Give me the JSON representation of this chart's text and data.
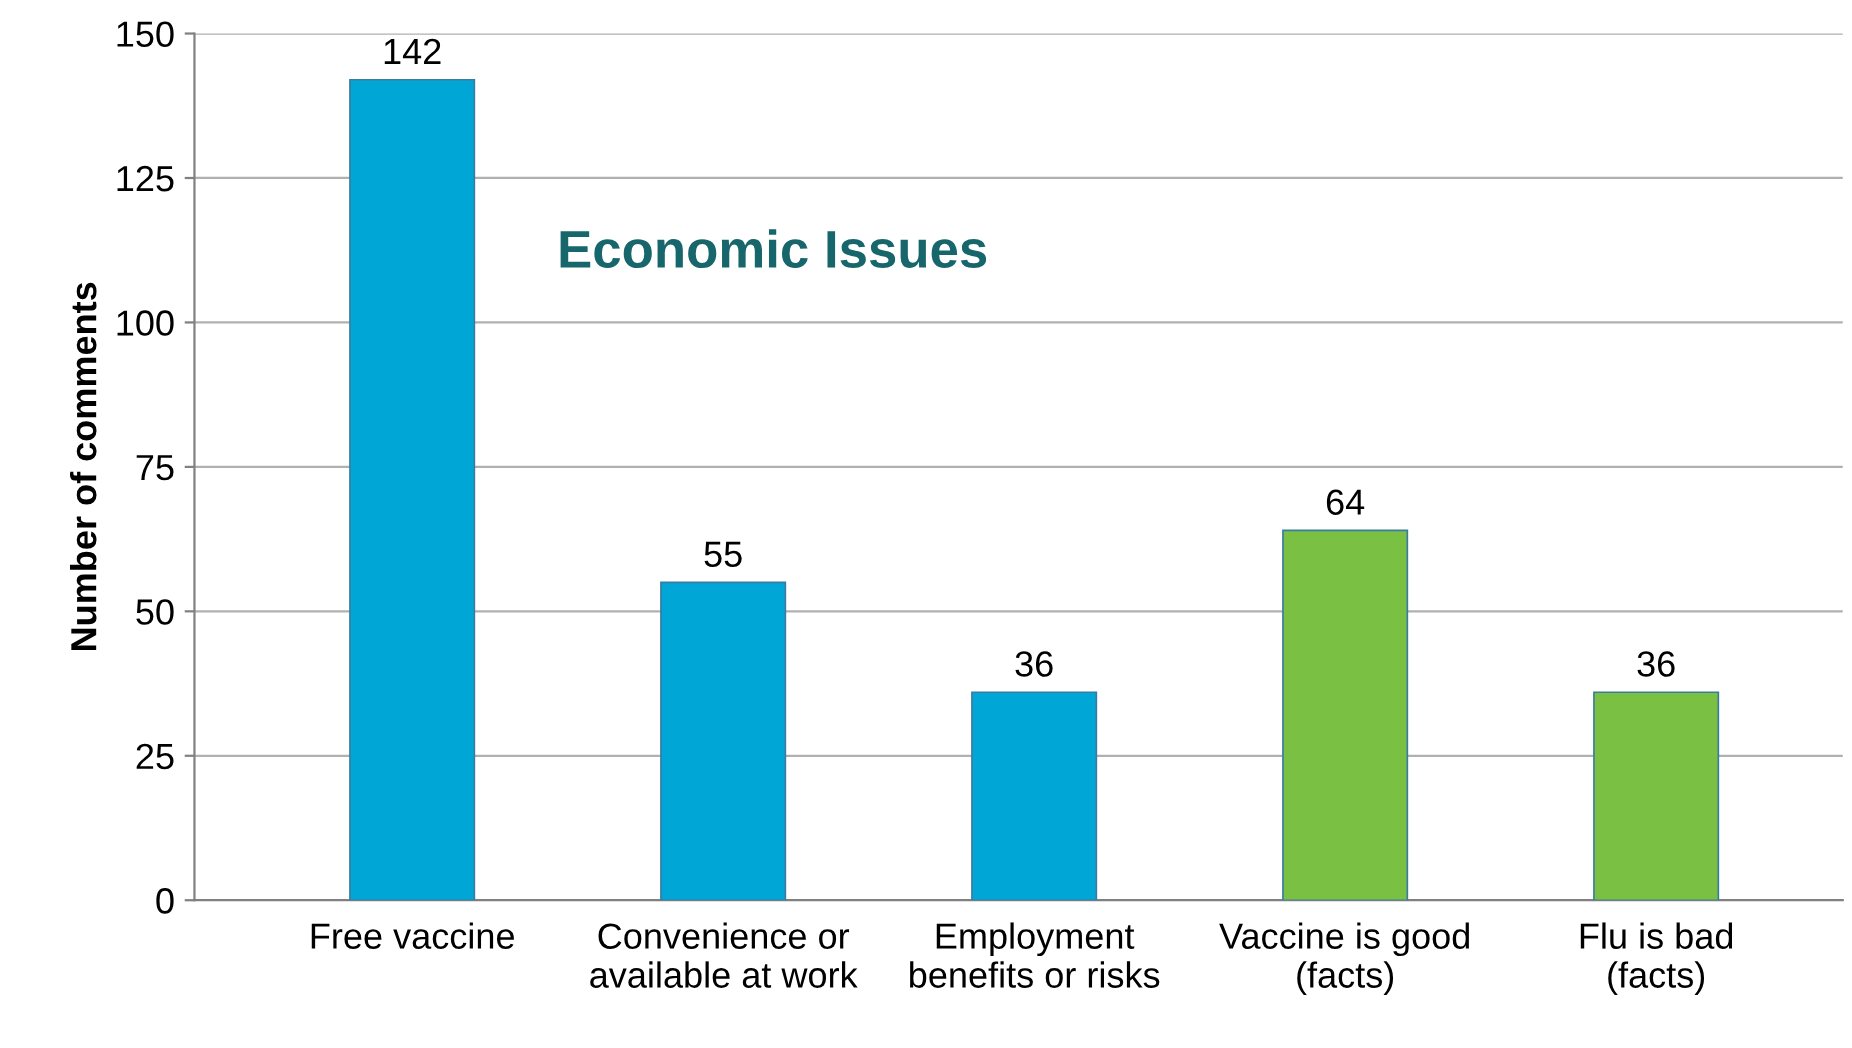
{
  "chart_data": {
    "type": "bar",
    "ylabel": "Number of comments",
    "categories": [
      "Free vaccine",
      "Convenience or\navailable at work",
      "Employment\nbenefits or risks",
      "Vaccine is good\n(facts)",
      "Flu is bad\n(facts)"
    ],
    "values": [
      142,
      55,
      36,
      64,
      36
    ],
    "colors": [
      "#00a6d6",
      "#00a6d6",
      "#00a6d6",
      "#7ac143",
      "#7ac143"
    ],
    "ylim": [
      0,
      150
    ],
    "yticks": [
      0,
      25,
      50,
      75,
      100,
      125,
      150
    ],
    "grid": "y",
    "data_labels": true,
    "annotations": [
      "Economic Issues"
    ]
  }
}
